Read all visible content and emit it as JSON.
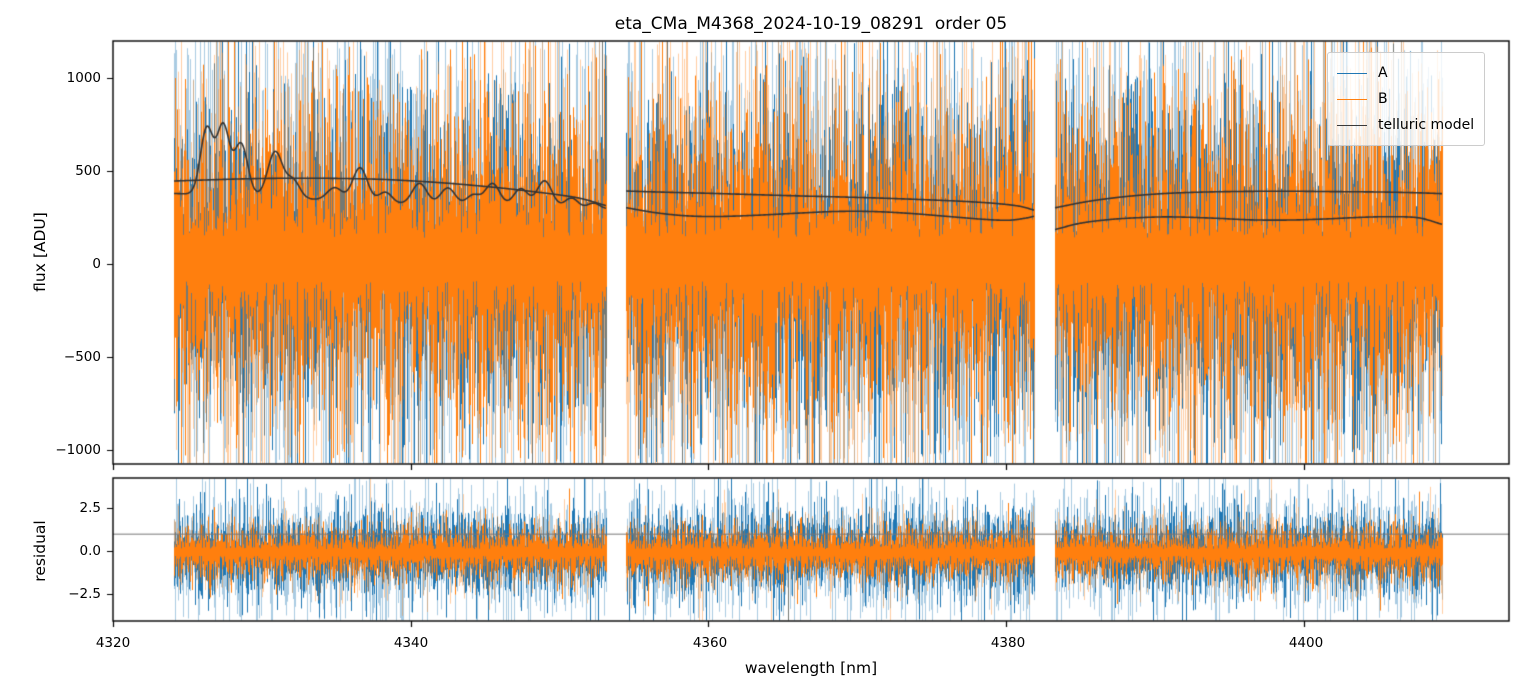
{
  "title": "eta_CMa_M4368_2024-10-19_08291  order 05",
  "axes": {
    "xlabel": "wavelength [nm]",
    "xtick_labels": [
      "4320",
      "4340",
      "4360",
      "4380",
      "4400"
    ],
    "flux_panel": {
      "ylabel": "flux [ADU]",
      "ytick_labels": [
        "1000",
        "500",
        "0",
        "−500",
        "−1000"
      ]
    },
    "residual_panel": {
      "ylabel": "residual",
      "ytick_labels": [
        "2.5",
        "0.0",
        "−2.5"
      ]
    }
  },
  "legend": {
    "items": [
      {
        "label": "A",
        "color": "#1f77b4"
      },
      {
        "label": "B",
        "color": "#ff7f0e"
      },
      {
        "label": "telluric model",
        "color": "#3a3a3a"
      }
    ]
  },
  "chart_data": {
    "type": "line",
    "title": "eta_CMa_M4368_2024-10-19_08291  order 05",
    "xlabel": "wavelength [nm]",
    "xlim": [
      4320.0,
      4413.8
    ],
    "xticks": [
      4320,
      4340,
      4360,
      4380,
      4400
    ],
    "segments_nm": [
      [
        4324.1,
        4353.1
      ],
      [
        4354.5,
        4381.9
      ],
      [
        4383.3,
        4409.3
      ]
    ],
    "seed": 20241019,
    "panels": [
      {
        "name": "flux",
        "ylabel": "flux [ADU]",
        "ylim": [
          -1075,
          1200
        ],
        "yticks": [
          1000,
          500,
          0,
          -500,
          -1000
        ],
        "noise_series": [
          {
            "name": "A",
            "color": "#1f77b4",
            "mean": 25,
            "sigma": 445,
            "spike_p": 0.03
          },
          {
            "name": "B",
            "color": "#ff7f0e",
            "mean": 25,
            "sigma": 415,
            "spike_p": 0.03
          }
        ],
        "telluric": {
          "name": "telluric model",
          "color": "#333333",
          "upper": [
            [
              [
                4324.1,
                447
              ],
              [
                4326,
                452
              ],
              [
                4329,
                459
              ],
              [
                4332,
                462
              ],
              [
                4335,
                461
              ],
              [
                4338,
                456
              ],
              [
                4340,
                448
              ],
              [
                4342,
                438
              ],
              [
                4344,
                425
              ],
              [
                4346,
                410
              ],
              [
                4348,
                392
              ],
              [
                4350,
                372
              ],
              [
                4351.5,
                352
              ],
              [
                4353.1,
                315
              ]
            ],
            [
              [
                4354.5,
                393
              ],
              [
                4357,
                387
              ],
              [
                4360,
                381
              ],
              [
                4363,
                374
              ],
              [
                4366,
                367
              ],
              [
                4369,
                361
              ],
              [
                4372,
                354
              ],
              [
                4375,
                345
              ],
              [
                4377.5,
                336
              ],
              [
                4379.5,
                325
              ],
              [
                4381,
                310
              ],
              [
                4381.9,
                290
              ]
            ],
            [
              [
                4383.3,
                303
              ],
              [
                4385.5,
                337
              ],
              [
                4388,
                363
              ],
              [
                4390.5,
                379
              ],
              [
                4393,
                387
              ],
              [
                4396,
                391
              ],
              [
                4399,
                392
              ],
              [
                4402,
                390
              ],
              [
                4405,
                388
              ],
              [
                4407.5,
                384
              ],
              [
                4409.3,
                379
              ]
            ]
          ],
          "lower": [
            [
              [
                4324.1,
                380
              ],
              [
                4327,
                372
              ],
              [
                4330,
                362
              ],
              [
                4333,
                350
              ],
              [
                4336,
                336
              ],
              [
                4339,
                324
              ],
              [
                4342,
                316
              ],
              [
                4345,
                309
              ],
              [
                4348,
                304
              ],
              [
                4351,
                300
              ],
              [
                4353.1,
                297
              ]
            ],
            [
              [
                4354.5,
                303
              ],
              [
                4356.5,
                276
              ],
              [
                4358.5,
                260
              ],
              [
                4360.5,
                256
              ],
              [
                4363,
                262
              ],
              [
                4366,
                274
              ],
              [
                4368.5,
                283
              ],
              [
                4371,
                283
              ],
              [
                4373.5,
                273
              ],
              [
                4376,
                257
              ],
              [
                4378.5,
                241
              ],
              [
                4380.2,
                236
              ],
              [
                4381.3,
                247
              ],
              [
                4381.9,
                258
              ]
            ],
            [
              [
                4383.3,
                186
              ],
              [
                4385,
                220
              ],
              [
                4387,
                240
              ],
              [
                4389,
                250
              ],
              [
                4391,
                254
              ],
              [
                4394,
                247
              ],
              [
                4396.5,
                238
              ],
              [
                4399,
                237
              ],
              [
                4401.5,
                243
              ],
              [
                4404,
                252
              ],
              [
                4406,
                255
              ],
              [
                4407.8,
                248
              ],
              [
                4409.3,
                214
              ]
            ]
          ],
          "lower_bumps": [
            [
              4326.3,
              355,
              0.42
            ],
            [
              4327.4,
              370,
              0.42
            ],
            [
              4328.6,
              280,
              0.45
            ],
            [
              4330.9,
              245,
              0.5
            ],
            [
              4332.1,
              95,
              0.45
            ],
            [
              4334.9,
              70,
              0.5
            ],
            [
              4336.6,
              185,
              0.5
            ],
            [
              4338.3,
              60,
              0.45
            ],
            [
              4340.6,
              115,
              0.5
            ],
            [
              4342.5,
              95,
              0.5
            ],
            [
              4344.2,
              60,
              0.45
            ],
            [
              4345.5,
              125,
              0.5
            ],
            [
              4347.4,
              100,
              0.5
            ],
            [
              4349.0,
              145,
              0.5
            ],
            [
              4350.8,
              55,
              0.45
            ],
            [
              4352.3,
              30,
              0.4
            ]
          ]
        }
      },
      {
        "name": "residual",
        "ylabel": "residual",
        "ylim": [
          -4.1,
          4.25
        ],
        "yticks": [
          2.5,
          0.0,
          -2.5
        ],
        "refline": 1.0,
        "refline_color": "#777777",
        "noise_series": [
          {
            "name": "A",
            "color": "#1f77b4",
            "mean": -0.1,
            "sigma": 1.25,
            "spike_p": 0.05
          },
          {
            "name": "B",
            "color": "#ff7f0e",
            "mean": -0.1,
            "sigma": 0.72,
            "spike_p": 0.03
          }
        ]
      }
    ]
  }
}
